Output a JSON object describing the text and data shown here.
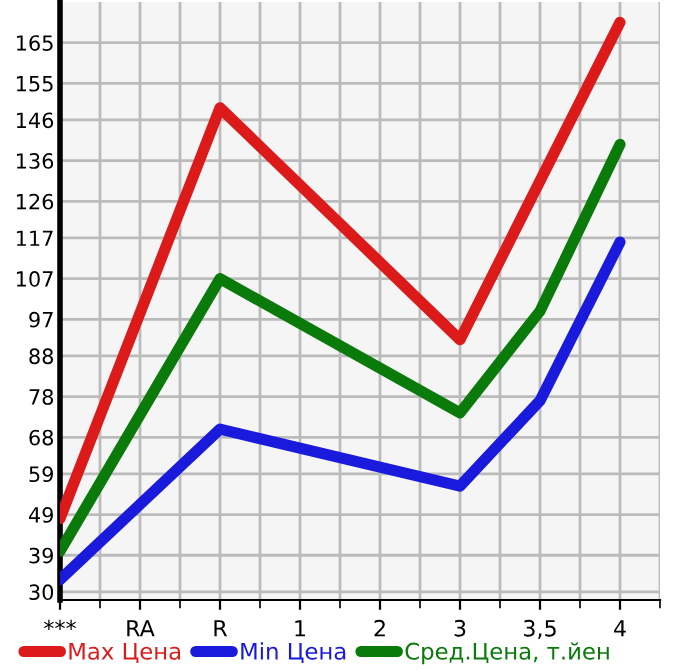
{
  "chart_data": {
    "type": "line",
    "categories": [
      "***",
      "RA",
      "R",
      "1",
      "2",
      "3",
      "3,5",
      "4"
    ],
    "series": [
      {
        "name": "Max Цена",
        "color": "#dd1a1a",
        "values": [
          48,
          null,
          149,
          null,
          null,
          92,
          null,
          170
        ]
      },
      {
        "name": "Min Цена",
        "color": "#1a1add",
        "values": [
          33,
          null,
          70,
          null,
          null,
          56,
          77,
          116
        ]
      },
      {
        "name": "Сред.Цена, т.йен",
        "color": "#0a7a0a",
        "values": [
          40,
          null,
          107,
          null,
          null,
          74,
          99,
          140
        ]
      }
    ],
    "ylim": [
      28,
      175
    ],
    "yticks": [
      30,
      39,
      49,
      59,
      68,
      78,
      88,
      97,
      107,
      117,
      126,
      136,
      146,
      155,
      165
    ],
    "grid": true,
    "legend": "bottom",
    "marker": "none",
    "line_style": "solid"
  }
}
